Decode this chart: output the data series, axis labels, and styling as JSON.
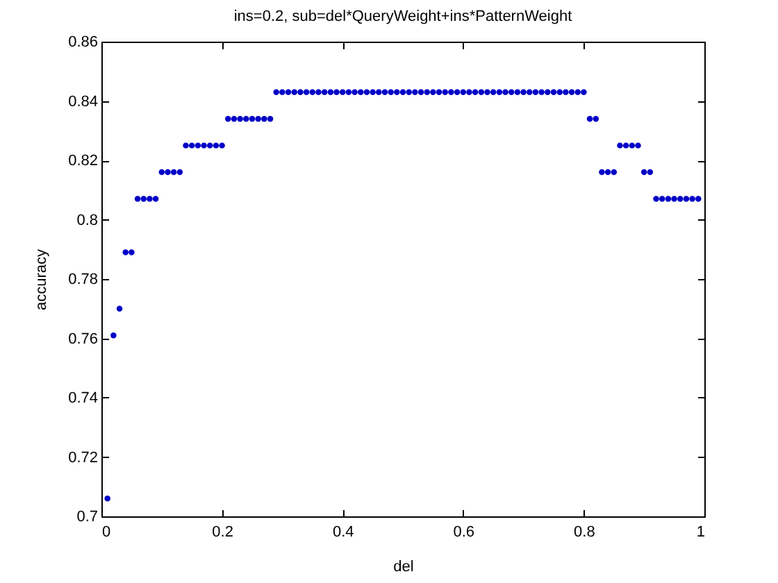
{
  "chart_data": {
    "type": "scatter",
    "title": "ins=0.2, sub=del*QueryWeight+ins*PatternWeight",
    "xlabel": "del",
    "ylabel": "accuracy",
    "x": [
      0.01,
      0.02,
      0.03,
      0.04,
      0.05,
      0.06,
      0.07,
      0.08,
      0.09,
      0.1,
      0.11,
      0.12,
      0.13,
      0.14,
      0.15,
      0.16,
      0.17,
      0.18,
      0.19,
      0.2,
      0.21,
      0.22,
      0.23,
      0.24,
      0.25,
      0.26,
      0.27,
      0.28,
      0.29,
      0.3,
      0.31,
      0.32,
      0.33,
      0.34,
      0.35,
      0.36,
      0.37,
      0.38,
      0.39,
      0.4,
      0.41,
      0.42,
      0.43,
      0.44,
      0.45,
      0.46,
      0.47,
      0.48,
      0.49,
      0.5,
      0.51,
      0.52,
      0.53,
      0.54,
      0.55,
      0.56,
      0.57,
      0.58,
      0.59,
      0.6,
      0.61,
      0.62,
      0.63,
      0.64,
      0.65,
      0.66,
      0.67,
      0.68,
      0.69,
      0.7,
      0.71,
      0.72,
      0.73,
      0.74,
      0.75,
      0.76,
      0.77,
      0.78,
      0.79,
      0.8,
      0.81,
      0.82,
      0.83,
      0.84,
      0.85,
      0.86,
      0.87,
      0.88,
      0.89,
      0.9,
      0.91,
      0.92,
      0.93,
      0.94,
      0.95,
      0.96,
      0.97,
      0.98,
      0.99
    ],
    "values": [
      0.706,
      0.761,
      0.77,
      0.789,
      0.789,
      0.807,
      0.807,
      0.807,
      0.807,
      0.816,
      0.816,
      0.816,
      0.816,
      0.825,
      0.825,
      0.825,
      0.825,
      0.825,
      0.825,
      0.825,
      0.834,
      0.834,
      0.834,
      0.834,
      0.834,
      0.834,
      0.834,
      0.834,
      0.843,
      0.843,
      0.843,
      0.843,
      0.843,
      0.843,
      0.843,
      0.843,
      0.843,
      0.843,
      0.843,
      0.843,
      0.843,
      0.843,
      0.843,
      0.843,
      0.843,
      0.843,
      0.843,
      0.843,
      0.843,
      0.843,
      0.843,
      0.843,
      0.843,
      0.843,
      0.843,
      0.843,
      0.843,
      0.843,
      0.843,
      0.843,
      0.843,
      0.843,
      0.843,
      0.843,
      0.843,
      0.843,
      0.843,
      0.843,
      0.843,
      0.843,
      0.843,
      0.843,
      0.843,
      0.843,
      0.843,
      0.843,
      0.843,
      0.843,
      0.843,
      0.843,
      0.834,
      0.834,
      0.816,
      0.816,
      0.816,
      0.825,
      0.825,
      0.825,
      0.825,
      0.816,
      0.816,
      0.807,
      0.807,
      0.807,
      0.807,
      0.807,
      0.807,
      0.807,
      0.807
    ],
    "color": "#0000c8",
    "marker": "circle",
    "xlim": [
      0,
      1
    ],
    "xticks": [
      0,
      0.2,
      0.4,
      0.6,
      0.8,
      1
    ],
    "ylim": [
      0.7,
      0.86
    ],
    "yticks": [
      0.7,
      0.72,
      0.74,
      0.76,
      0.78,
      0.8,
      0.82,
      0.84,
      0.86
    ]
  }
}
